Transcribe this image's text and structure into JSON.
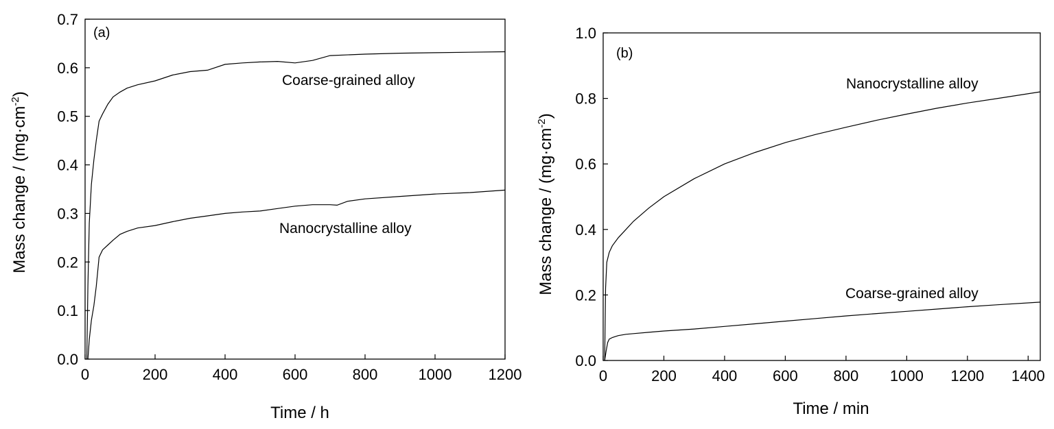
{
  "chart_data": [
    {
      "type": "line",
      "panel_label": "(a)",
      "xlabel": "Time / h",
      "ylabel_main": "Mass change / (mg·cm",
      "ylabel_sup": "-2",
      "ylabel_end": ")",
      "xlim": [
        0,
        1200
      ],
      "ylim": [
        0.0,
        0.7
      ],
      "xticks": [
        0,
        200,
        400,
        600,
        800,
        1000,
        1200
      ],
      "xtick_labels": [
        "0",
        "200",
        "400",
        "600",
        "800",
        "1000",
        "1200"
      ],
      "yticks": [
        0.0,
        0.1,
        0.2,
        0.3,
        0.4,
        0.5,
        0.6,
        0.7
      ],
      "ytick_labels": [
        "0.0",
        "0.1",
        "0.2",
        "0.3",
        "0.4",
        "0.5",
        "0.6",
        "0.7"
      ],
      "series": [
        {
          "name": "Coarse-grained alloy",
          "x": [
            5,
            8,
            12,
            18,
            25,
            32,
            40,
            50,
            65,
            80,
            100,
            120,
            150,
            200,
            250,
            300,
            350,
            400,
            450,
            500,
            550,
            600,
            650,
            700,
            800,
            900,
            1000,
            1100,
            1200
          ],
          "y": [
            0.0,
            0.15,
            0.28,
            0.36,
            0.41,
            0.45,
            0.49,
            0.505,
            0.525,
            0.54,
            0.55,
            0.558,
            0.565,
            0.573,
            0.585,
            0.592,
            0.595,
            0.607,
            0.61,
            0.612,
            0.613,
            0.61,
            0.615,
            0.625,
            0.628,
            0.63,
            0.631,
            0.632,
            0.633
          ]
        },
        {
          "name": "Nanocrystalline alloy",
          "x": [
            8,
            12,
            18,
            25,
            32,
            40,
            50,
            65,
            80,
            100,
            120,
            150,
            200,
            250,
            300,
            350,
            400,
            450,
            500,
            550,
            600,
            650,
            700,
            720,
            750,
            800,
            900,
            1000,
            1100,
            1200
          ],
          "y": [
            0.0,
            0.04,
            0.08,
            0.11,
            0.15,
            0.21,
            0.225,
            0.235,
            0.245,
            0.257,
            0.263,
            0.27,
            0.275,
            0.283,
            0.29,
            0.295,
            0.3,
            0.303,
            0.305,
            0.31,
            0.315,
            0.318,
            0.318,
            0.317,
            0.325,
            0.33,
            0.335,
            0.34,
            0.343,
            0.348
          ]
        }
      ],
      "annotations": [
        "Coarse-grained alloy",
        "Nanocrystalline alloy"
      ]
    },
    {
      "type": "line",
      "panel_label": "(b)",
      "xlabel": "Time / min",
      "ylabel_main": "Mass change / (mg·cm",
      "ylabel_sup": "-2",
      "ylabel_end": ")",
      "xlim": [
        0,
        1440
      ],
      "ylim": [
        0.0,
        1.0
      ],
      "xticks": [
        0,
        200,
        400,
        600,
        800,
        1000,
        1200,
        1400
      ],
      "xtick_labels": [
        "0",
        "200",
        "400",
        "600",
        "800",
        "1000",
        "1200",
        "1400"
      ],
      "yticks": [
        0.0,
        0.2,
        0.4,
        0.6,
        0.8,
        1.0
      ],
      "ytick_labels": [
        "0.0",
        "0.2",
        "0.4",
        "0.6",
        "0.8",
        "1.0"
      ],
      "series": [
        {
          "name": "Nanocrystalline alloy",
          "x": [
            5,
            8,
            12,
            20,
            30,
            50,
            75,
            100,
            150,
            200,
            300,
            400,
            500,
            600,
            700,
            800,
            900,
            1000,
            1100,
            1200,
            1300,
            1440
          ],
          "y": [
            0.0,
            0.22,
            0.3,
            0.33,
            0.35,
            0.375,
            0.4,
            0.425,
            0.465,
            0.5,
            0.555,
            0.6,
            0.635,
            0.665,
            0.69,
            0.712,
            0.733,
            0.752,
            0.77,
            0.786,
            0.8,
            0.82
          ]
        },
        {
          "name": "Coarse-grained alloy",
          "x": [
            5,
            10,
            15,
            20,
            30,
            50,
            75,
            100,
            150,
            200,
            300,
            400,
            500,
            600,
            700,
            800,
            900,
            1000,
            1100,
            1200,
            1300,
            1440
          ],
          "y": [
            0.0,
            0.03,
            0.055,
            0.065,
            0.07,
            0.076,
            0.08,
            0.082,
            0.086,
            0.09,
            0.096,
            0.104,
            0.112,
            0.12,
            0.128,
            0.136,
            0.143,
            0.15,
            0.157,
            0.164,
            0.17,
            0.178
          ]
        }
      ],
      "annotations": [
        "Nanocrystalline alloy",
        "Coarse-grained alloy"
      ]
    }
  ]
}
